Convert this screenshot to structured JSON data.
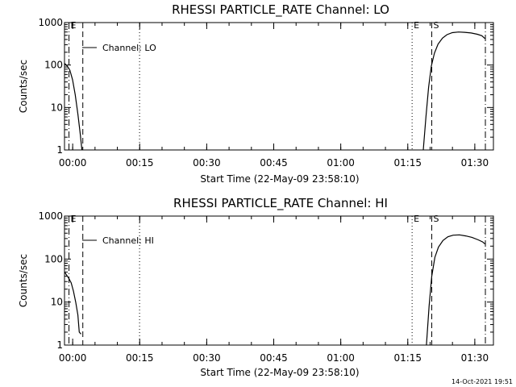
{
  "footer": {
    "timestamp": "14-Oct-2021 19:51"
  },
  "chart_data": [
    {
      "type": "line",
      "title": "RHESSI PARTICLE_RATE Channel: LO",
      "xlabel": "Start Time (22-May-09 23:58:10)",
      "ylabel": "Counts/sec",
      "yscale": "log",
      "xlim": [
        0,
        96
      ],
      "ylim": [
        1,
        1000
      ],
      "x_ticks": [
        {
          "value": 1.83,
          "label": "00:00"
        },
        {
          "value": 16.83,
          "label": "00:15"
        },
        {
          "value": 31.83,
          "label": "00:30"
        },
        {
          "value": 46.83,
          "label": "00:45"
        },
        {
          "value": 61.83,
          "label": "01:00"
        },
        {
          "value": 76.83,
          "label": "01:15"
        },
        {
          "value": 91.83,
          "label": "01:30"
        }
      ],
      "y_ticks": [
        {
          "value": 1,
          "label": "1"
        },
        {
          "value": 10,
          "label": "10"
        },
        {
          "value": 100,
          "label": "100"
        },
        {
          "value": 1000,
          "label": "1000"
        }
      ],
      "legend": {
        "label": "Channel: LO",
        "placement": "top-left"
      },
      "markers": [
        {
          "x": 1.0,
          "style": "dashdot",
          "label": "E"
        },
        {
          "x": 4.1,
          "style": "dashed",
          "label": ""
        },
        {
          "x": 16.8,
          "style": "dotted",
          "label": ""
        },
        {
          "x": 77.8,
          "style": "dotted",
          "label": "E"
        },
        {
          "x": 82.2,
          "style": "dashed",
          "label": "S"
        },
        {
          "x": 94.2,
          "style": "dashdot",
          "label": ""
        }
      ],
      "series": [
        {
          "segments": [
            [
              [
                0.0,
                110
              ],
              [
                0.6,
                95
              ],
              [
                1.2,
                75
              ],
              [
                1.8,
                45
              ],
              [
                2.4,
                20
              ],
              [
                3.0,
                7
              ],
              [
                3.5,
                2.5
              ],
              [
                3.9,
                1.0
              ]
            ],
            [
              [
                80.3,
                1.0
              ],
              [
                80.9,
                6
              ],
              [
                81.5,
                30
              ],
              [
                82.1,
                95
              ],
              [
                82.8,
                190
              ],
              [
                83.6,
                310
              ],
              [
                84.6,
                430
              ],
              [
                85.6,
                520
              ],
              [
                86.8,
                580
              ],
              [
                88.2,
                600
              ],
              [
                89.6,
                590
              ],
              [
                91.0,
                570
              ],
              [
                92.4,
                530
              ],
              [
                93.4,
                490
              ],
              [
                94.1,
                420
              ]
            ]
          ]
        }
      ]
    },
    {
      "type": "line",
      "title": "RHESSI PARTICLE_RATE Channel: HI",
      "xlabel": "Start Time (22-May-09 23:58:10)",
      "ylabel": "Counts/sec",
      "yscale": "log",
      "xlim": [
        0,
        96
      ],
      "ylim": [
        1,
        1000
      ],
      "x_ticks": [
        {
          "value": 1.83,
          "label": "00:00"
        },
        {
          "value": 16.83,
          "label": "00:15"
        },
        {
          "value": 31.83,
          "label": "00:30"
        },
        {
          "value": 46.83,
          "label": "00:45"
        },
        {
          "value": 61.83,
          "label": "01:00"
        },
        {
          "value": 76.83,
          "label": "01:15"
        },
        {
          "value": 91.83,
          "label": "01:30"
        }
      ],
      "y_ticks": [
        {
          "value": 1,
          "label": "1"
        },
        {
          "value": 10,
          "label": "10"
        },
        {
          "value": 100,
          "label": "100"
        },
        {
          "value": 1000,
          "label": "1000"
        }
      ],
      "legend": {
        "label": "Channel: HI",
        "placement": "top-left"
      },
      "markers": [
        {
          "x": 1.0,
          "style": "dashdot",
          "label": "E"
        },
        {
          "x": 4.1,
          "style": "dashed",
          "label": ""
        },
        {
          "x": 16.8,
          "style": "dotted",
          "label": ""
        },
        {
          "x": 77.8,
          "style": "dotted",
          "label": "E"
        },
        {
          "x": 82.2,
          "style": "dashed",
          "label": "S"
        },
        {
          "x": 94.2,
          "style": "dashdot",
          "label": ""
        }
      ],
      "series": [
        {
          "segments": [
            [
              [
                0.0,
                50
              ],
              [
                0.5,
                42
              ],
              [
                1.0,
                35
              ],
              [
                1.5,
                28
              ],
              [
                2.0,
                18
              ],
              [
                2.5,
                10
              ],
              [
                3.0,
                5
              ],
              [
                3.3,
                2.0
              ],
              [
                3.7,
                1.8
              ]
            ],
            [
              [
                81.0,
                1.0
              ],
              [
                81.6,
                8
              ],
              [
                82.2,
                40
              ],
              [
                82.9,
                110
              ],
              [
                83.7,
                190
              ],
              [
                84.7,
                270
              ],
              [
                85.8,
                330
              ],
              [
                87.0,
                360
              ],
              [
                88.4,
                365
              ],
              [
                89.8,
                345
              ],
              [
                91.2,
                320
              ],
              [
                92.6,
                280
              ],
              [
                93.6,
                250
              ],
              [
                94.1,
                225
              ]
            ]
          ]
        }
      ]
    }
  ]
}
